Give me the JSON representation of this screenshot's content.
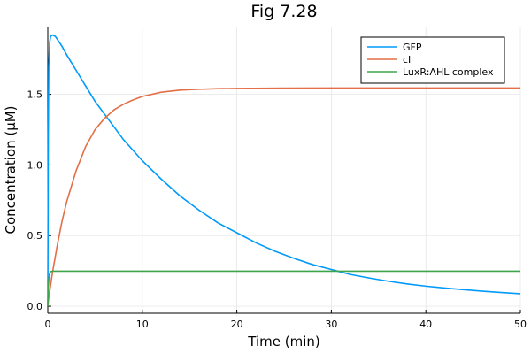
{
  "chart_data": {
    "type": "line",
    "title": "Fig 7.28",
    "xlabel": "Time (min)",
    "ylabel": "Concentration (μM)",
    "xlim": [
      0,
      50
    ],
    "ylim": [
      -0.05,
      1.98
    ],
    "xticks": [
      0,
      10,
      20,
      30,
      40,
      50
    ],
    "xtick_labels": [
      "0",
      "10",
      "20",
      "30",
      "40",
      "50"
    ],
    "yticks": [
      0.0,
      0.5,
      1.0,
      1.5
    ],
    "ytick_labels": [
      "0.0",
      "0.5",
      "1.0",
      "1.5"
    ],
    "grid": true,
    "legend_position": "top-right",
    "series": [
      {
        "name": "GFP",
        "color": "#009AF9",
        "x": [
          0,
          0.05,
          0.1,
          0.2,
          0.3,
          0.5,
          0.8,
          1,
          1.5,
          2,
          3,
          4,
          5,
          6,
          7,
          8,
          10,
          12,
          14,
          16,
          18,
          20,
          22,
          24,
          26,
          28,
          30,
          32,
          34,
          36,
          38,
          40,
          42,
          44,
          46,
          48,
          50
        ],
        "y": [
          0,
          1.2,
          1.7,
          1.87,
          1.91,
          1.92,
          1.91,
          1.89,
          1.84,
          1.78,
          1.67,
          1.56,
          1.45,
          1.36,
          1.27,
          1.18,
          1.03,
          0.9,
          0.78,
          0.68,
          0.59,
          0.52,
          0.45,
          0.39,
          0.34,
          0.295,
          0.26,
          0.225,
          0.2,
          0.177,
          0.158,
          0.142,
          0.129,
          0.117,
          0.106,
          0.097,
          0.088
        ]
      },
      {
        "name": "cI",
        "color": "#E26F46",
        "x": [
          0,
          0.1,
          0.3,
          0.5,
          1,
          1.5,
          2,
          3,
          4,
          5,
          6,
          7,
          8,
          9,
          10,
          12,
          14,
          16,
          18,
          20,
          25,
          30,
          35,
          40,
          45,
          50
        ],
        "y": [
          0,
          0.06,
          0.15,
          0.24,
          0.43,
          0.6,
          0.74,
          0.96,
          1.13,
          1.25,
          1.33,
          1.39,
          1.43,
          1.46,
          1.485,
          1.515,
          1.53,
          1.536,
          1.54,
          1.542,
          1.544,
          1.545,
          1.545,
          1.545,
          1.545,
          1.545
        ]
      },
      {
        "name": "LuxR:AHL complex",
        "color": "#3DA44D",
        "x": [
          0,
          0.05,
          0.1,
          0.2,
          0.3,
          0.5,
          1,
          2,
          5,
          10,
          20,
          30,
          40,
          50
        ],
        "y": [
          0,
          0.12,
          0.19,
          0.235,
          0.245,
          0.248,
          0.248,
          0.248,
          0.248,
          0.248,
          0.248,
          0.248,
          0.248,
          0.248
        ]
      }
    ]
  }
}
